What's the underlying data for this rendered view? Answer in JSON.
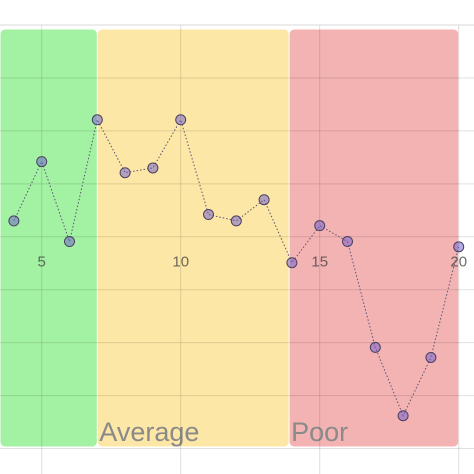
{
  "chart_data": {
    "type": "line",
    "x": [
      4,
      5,
      6,
      7,
      8,
      9,
      10,
      11,
      12,
      13,
      14,
      15,
      16,
      17,
      18,
      19,
      20
    ],
    "series": [
      {
        "color": "#6a5acd",
        "values": [
          0.3,
          1.42,
          -0.09,
          2.21,
          1.21,
          1.3,
          2.21,
          0.42,
          0.3,
          0.7,
          -0.49,
          0.21,
          -0.09,
          -2.09,
          -3.38,
          -2.28,
          -0.19
        ]
      }
    ],
    "xlim": [
      3.5,
      20.55
    ],
    "xticks": [
      5,
      10,
      15,
      20
    ],
    "ylim": [
      -4.5,
      4
    ],
    "yticks": [
      -4,
      -3,
      -2,
      -1,
      0,
      1,
      2,
      3,
      4
    ],
    "grid": true,
    "bands": [
      {
        "from": 3.5,
        "to": 7,
        "color": "#a3f2a3"
      },
      {
        "from": 7,
        "to": 13.9,
        "label": "Average",
        "color": "#fde7a6"
      },
      {
        "from": 13.9,
        "to": 20,
        "label": "Poor",
        "color": "#f4b3b3"
      }
    ]
  }
}
